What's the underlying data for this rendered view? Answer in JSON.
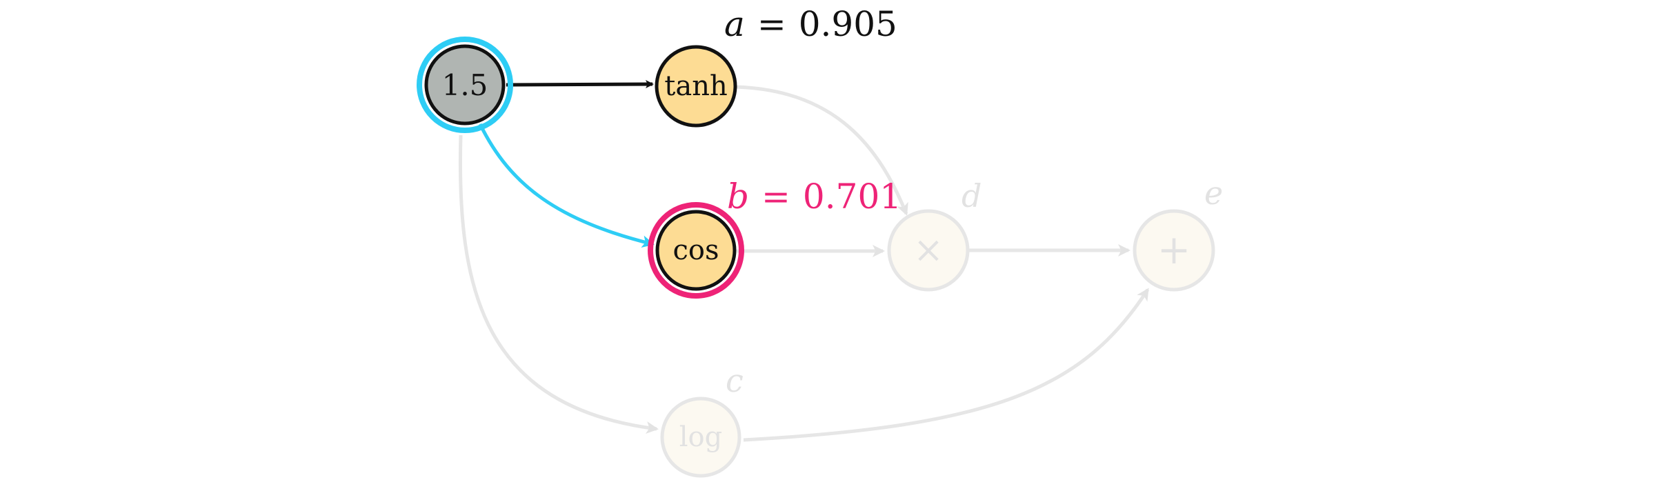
{
  "input_node": {
    "label": "1.5",
    "fill": "#B0B5B2",
    "ring_color": "#2ECDF5"
  },
  "nodes": {
    "tanh": {
      "label": "tanh",
      "value_var": "a",
      "value_eq": "=",
      "value_num": "0.905",
      "value_color": "#111111"
    },
    "cos": {
      "label": "cos",
      "value_var": "b",
      "value_eq": "=",
      "value_num": "0.701",
      "value_color": "#EE2377",
      "ring_color": "#EE2377"
    },
    "log": {
      "label": "log",
      "var": "c"
    },
    "mul": {
      "label": "×",
      "var": "d"
    },
    "add": {
      "label": "+",
      "var": "e"
    }
  },
  "colors": {
    "active_fill": "#FDDC94",
    "inactive_fill": "#FCF9F1",
    "inactive_stroke": "#E6E6E6",
    "inactive_text": "#E2E2E2",
    "active_edge": "#111111",
    "highlight_edge": "#2ECDF5"
  }
}
